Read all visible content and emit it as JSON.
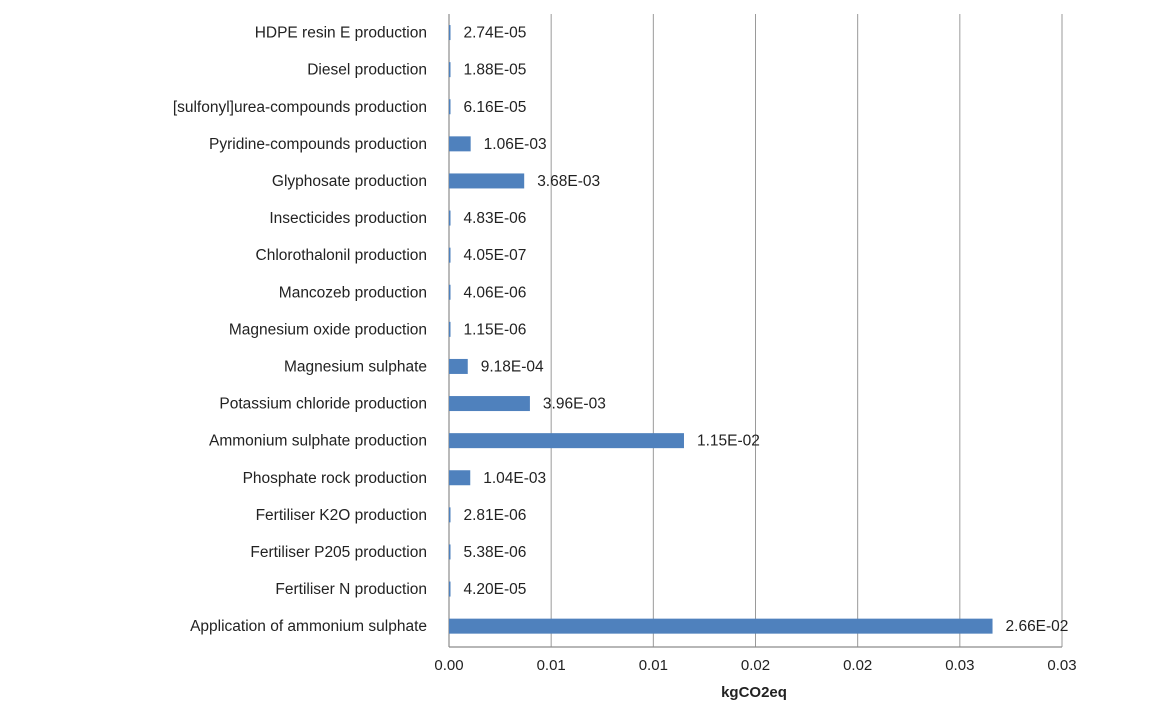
{
  "chart_data": {
    "type": "bar",
    "orientation": "horizontal",
    "title": "",
    "xlabel": "kgCO2eq",
    "ylabel": "",
    "xlim": [
      0,
      0.03
    ],
    "x_tick_labels": [
      "0.00",
      "0.01",
      "0.01",
      "0.02",
      "0.02",
      "0.03",
      "0.03"
    ],
    "grid": "vertical lines",
    "legend": "none",
    "bar_color": "#4f81bd",
    "categories": [
      "HDPE resin E production",
      "Diesel production",
      "[sulfonyl]urea-compounds production",
      "Pyridine-compounds production",
      "Glyphosate production",
      "Insecticides production",
      "Chlorothalonil production",
      "Mancozeb production",
      "Magnesium oxide production",
      "Magnesium sulphate",
      "Potassium chloride production",
      "Ammonium sulphate production",
      "Phosphate rock production",
      "Fertiliser K2O production",
      "Fertiliser P205 production",
      "Fertiliser N production",
      "Application of ammonium sulphate"
    ],
    "values": [
      2.74e-05,
      1.88e-05,
      6.16e-05,
      0.00106,
      0.00368,
      4.83e-06,
      4.05e-07,
      4.06e-06,
      1.15e-06,
      0.000918,
      0.00396,
      0.0115,
      0.00104,
      2.81e-06,
      5.38e-06,
      4.2e-05,
      0.0266
    ],
    "value_labels": [
      "2.74E-05",
      "1.88E-05",
      "6.16E-05",
      "1.06E-03",
      "3.68E-03",
      "4.83E-06",
      "4.05E-07",
      "4.06E-06",
      "1.15E-06",
      "9.18E-04",
      "3.96E-03",
      "1.15E-02",
      "1.04E-03",
      "2.81E-06",
      "5.38E-06",
      "4.20E-05",
      "2.66E-02"
    ]
  }
}
